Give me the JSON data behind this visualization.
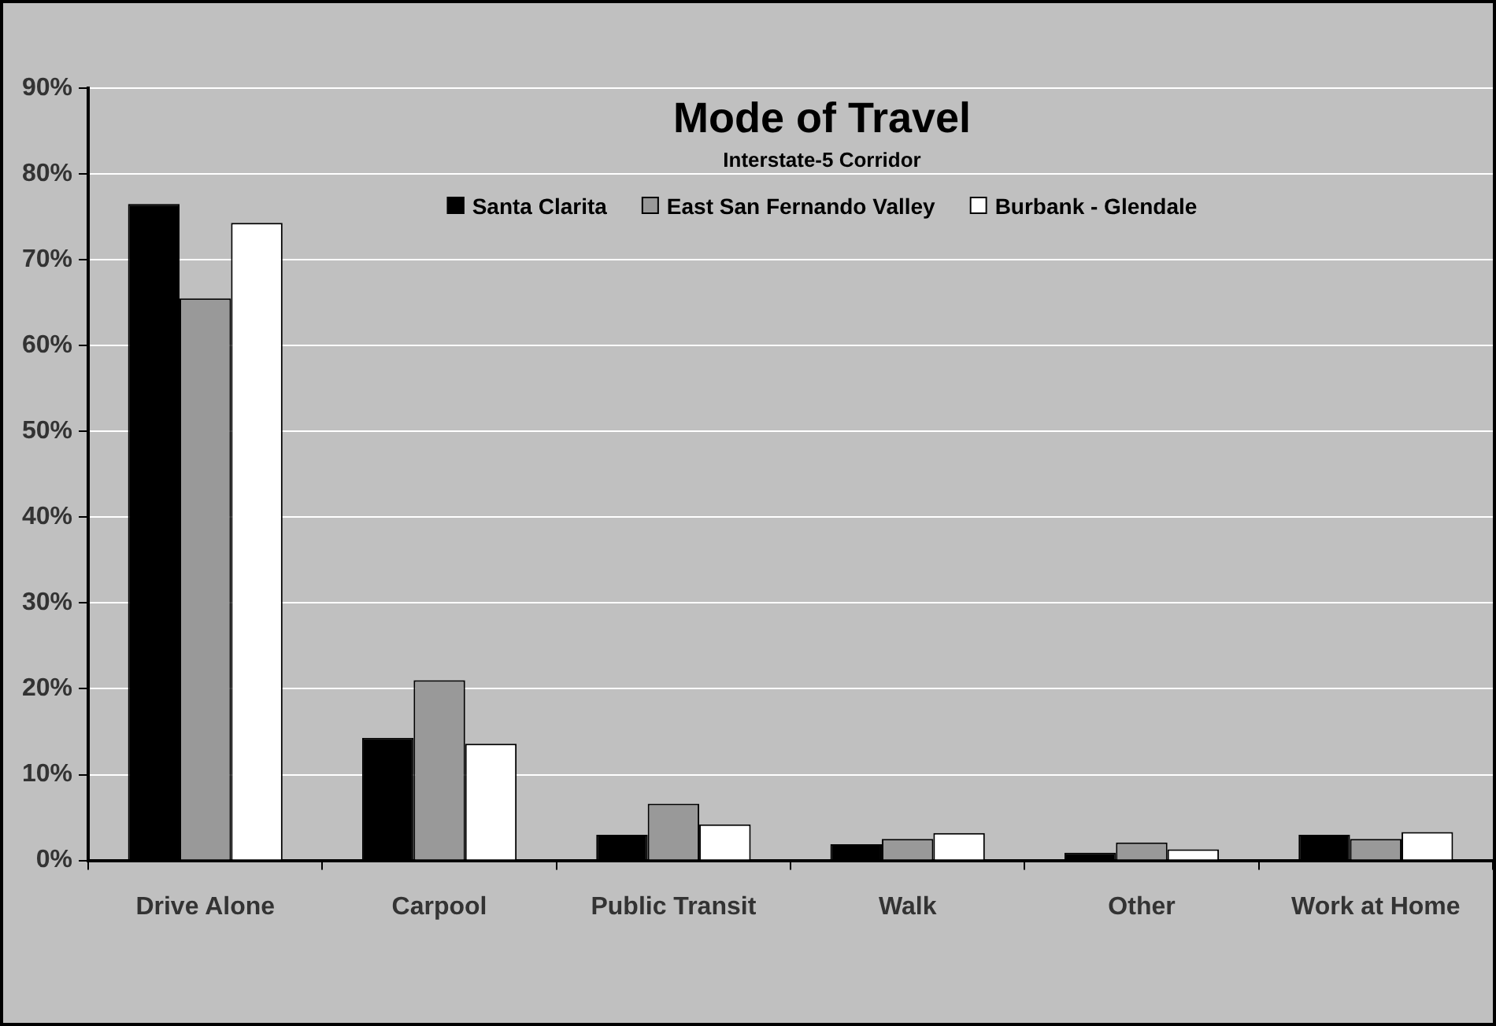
{
  "chart_data": {
    "type": "bar",
    "title": "Mode of Travel",
    "subtitle": "Interstate-5 Corridor",
    "categories": [
      "Drive Alone",
      "Carpool",
      "Public Transit",
      "Walk",
      "Other",
      "Work at Home"
    ],
    "series": [
      {
        "name": "Santa Clarita",
        "color": "#000000",
        "values": [
          76.5,
          14.3,
          3.0,
          1.9,
          0.9,
          3.0
        ]
      },
      {
        "name": "East San Fernando Valley",
        "color": "#999999",
        "values": [
          65.5,
          21.0,
          6.6,
          2.5,
          2.1,
          2.5
        ]
      },
      {
        "name": "Burbank - Glendale",
        "color": "#ffffff",
        "values": [
          74.3,
          13.6,
          4.2,
          3.2,
          1.3,
          3.3
        ]
      }
    ],
    "ylim": [
      0,
      90
    ],
    "yticks": [
      {
        "value": 0,
        "label": "0%"
      },
      {
        "value": 10,
        "label": "10%"
      },
      {
        "value": 20,
        "label": "20%"
      },
      {
        "value": 30,
        "label": "30%"
      },
      {
        "value": 40,
        "label": "40%"
      },
      {
        "value": 50,
        "label": "50%"
      },
      {
        "value": 60,
        "label": "60%"
      },
      {
        "value": 70,
        "label": "70%"
      },
      {
        "value": 80,
        "label": "80%"
      },
      {
        "value": 90,
        "label": "90%"
      }
    ],
    "grid": "y",
    "legend": "top"
  }
}
